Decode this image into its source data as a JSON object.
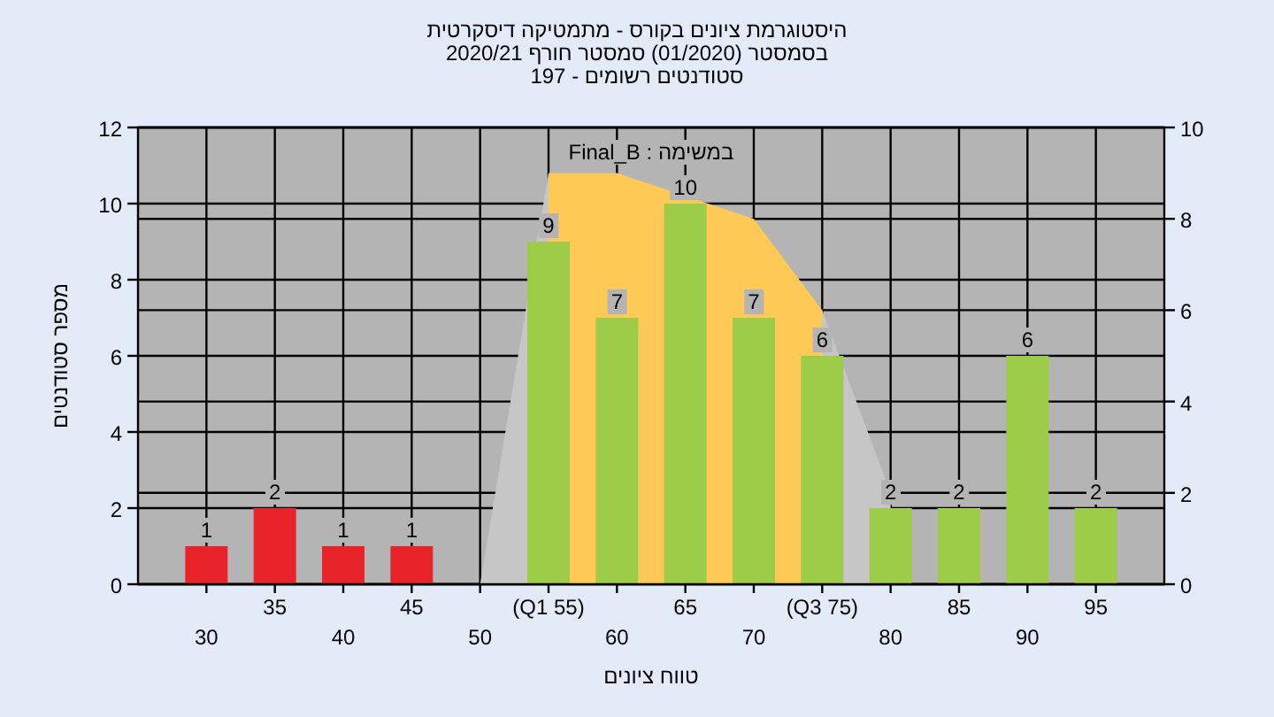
{
  "chart_data": {
    "type": "bar",
    "title": "היסטוגרמת ציונים בקורס - מתמטיקה דיסקרטית",
    "subtitle": "בסמסטר (01/2020) סמסטר חורף 2020/21",
    "annotations": [
      "סטודנטים רשומים - 197",
      "במשימה : Final_B"
    ],
    "xlabel": "טווח ציונים",
    "ylabel": "מספר סטודנטים",
    "categories": [
      "30",
      "35",
      "40",
      "45",
      "50",
      "(Q1 55)",
      "60",
      "65",
      "70",
      "(Q3 75)",
      "80",
      "85",
      "90",
      "95"
    ],
    "series": [
      {
        "type": "area",
        "axis": "y2",
        "color": "#c6c6c6",
        "values": [
          null,
          null,
          null,
          null,
          0,
          9,
          null,
          null,
          null,
          6,
          2,
          null,
          null,
          null
        ]
      },
      {
        "type": "area",
        "axis": "y2",
        "color": "#ffc955",
        "values": [
          null,
          null,
          null,
          null,
          null,
          9,
          9,
          null,
          8,
          6,
          null,
          null,
          null,
          null
        ]
      },
      {
        "axis": "y",
        "values": [
          1,
          2,
          1,
          1,
          0,
          9,
          7,
          10,
          7,
          6,
          2,
          2,
          6,
          2
        ],
        "colors": [
          "#e8242a",
          "#e8242a",
          "#e8242a",
          "#e8242a",
          "#9ccc48",
          "#9ccc48",
          "#9ccc48",
          "#9ccc48",
          "#9ccc48",
          "#9ccc48",
          "#9ccc48",
          "#9ccc48",
          "#9ccc48",
          "#9ccc48"
        ],
        "value_labels": [
          "1",
          "2",
          "1",
          "1",
          null,
          "9",
          "7",
          "10",
          "7",
          "6",
          "2",
          "2",
          "6",
          "2"
        ]
      }
    ],
    "ylim": [
      0,
      12
    ],
    "yticks": [
      0,
      2,
      4,
      6,
      8,
      10,
      12
    ],
    "y2lim": [
      0,
      10
    ],
    "y2ticks": [
      0,
      2,
      4,
      6,
      8,
      10
    ],
    "grid": true
  }
}
